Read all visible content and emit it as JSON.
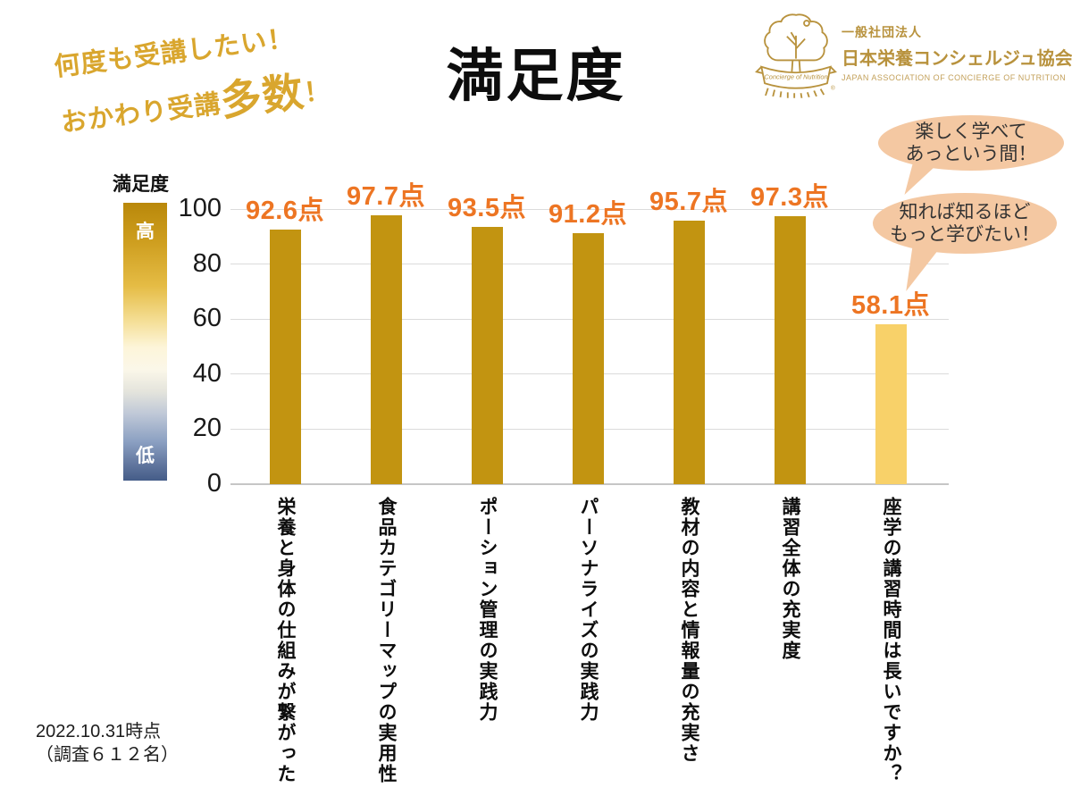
{
  "page": {
    "background": "#FFFFFF"
  },
  "tagline": {
    "line1": "何度も受講したい！",
    "line2_prefix": "おかわり受講",
    "line2_emph": "多数",
    "line2_suffix": "！",
    "color": "#D9A62E"
  },
  "title": "満足度",
  "logo": {
    "org_type": "一般社団法人",
    "org_name": "日本栄養コンシェルジュ協会",
    "org_name_en": "JAPAN ASSOCIATION OF CONCIERGE OF NUTRITION",
    "ribbon_text": "Concierge of Nutrition",
    "registered_mark": "®",
    "color": "#B8923D"
  },
  "axis_legend": {
    "label": "満足度",
    "high": "高",
    "low": "低",
    "gradient_stops": [
      "#B9880A 0%",
      "#CE9E1F 14%",
      "#E5BC45 30%",
      "#F4DD92 42%",
      "#FDF5D9 52%",
      "#FBF7E9 60%",
      "#E4E4DC 68%",
      "#BFC8D7 76%",
      "#8BA0C2 86%",
      "#62779F 94%",
      "#445C88 100%"
    ]
  },
  "chart_data": {
    "type": "bar",
    "title": "満足度",
    "categories": [
      "栄養と身体の仕組みが繋がった",
      "食品カテゴリーマップの実用性",
      "ポーション管理の実践力",
      "パーソナライズの実践力",
      "教材の内容と情報量の充実さ",
      "講習全体の充実度",
      "座学の講習時間は長いですか？"
    ],
    "values": [
      92.6,
      97.7,
      93.5,
      91.2,
      95.7,
      97.3,
      58.1
    ],
    "value_labels": [
      "92.6点",
      "97.7点",
      "93.5点",
      "91.2点",
      "95.7点",
      "97.3点",
      "58.1点"
    ],
    "xlabel": "",
    "ylabel": "満足度",
    "ylim": [
      0,
      100
    ],
    "yticks": [
      0,
      20,
      40,
      60,
      80,
      100
    ],
    "grid": "horizontal-only",
    "legend_position": "left-vertical-gradient",
    "bar_colors": [
      "#C29411",
      "#C29411",
      "#C29411",
      "#C29411",
      "#C29411",
      "#C29411",
      "#F8D169"
    ],
    "value_label_color": "#ED7523"
  },
  "bubbles": [
    {
      "lines": [
        "楽しく学べて",
        "あっという間！"
      ]
    },
    {
      "lines": [
        "知れば知るほど",
        "もっと学びたい！"
      ]
    }
  ],
  "footnote": {
    "line1": "2022.10.31時点",
    "line2": "（調査６１２名）"
  }
}
